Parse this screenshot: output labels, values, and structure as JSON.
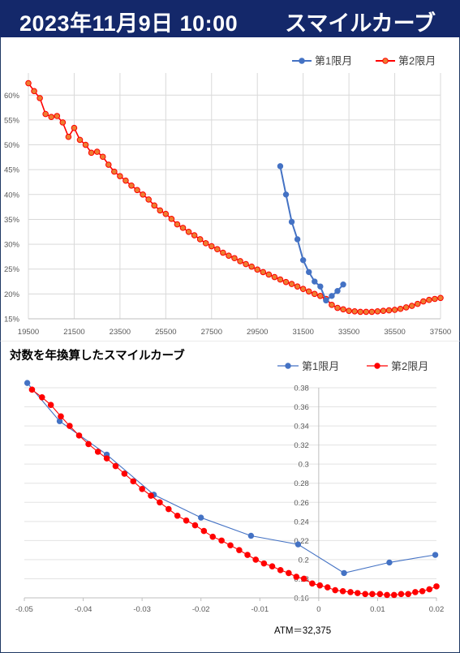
{
  "header": {
    "date": "2023年11月9日 10:00",
    "title": "スマイルカーブ"
  },
  "colors": {
    "series1": "#4472c4",
    "series2": "#ff0000",
    "series2_fill": "#ed7d31"
  },
  "chart_data": [
    {
      "type": "line",
      "title": "",
      "xlim": [
        19500,
        37500
      ],
      "ylim": [
        0.15,
        0.62
      ],
      "grid": true,
      "legend": "top-right",
      "x_ticks": [
        "19500",
        "21500",
        "23500",
        "25500",
        "27500",
        "29500",
        "31500",
        "33500",
        "35500",
        "37500"
      ],
      "y_ticks": [
        "15%",
        "20%",
        "25%",
        "30%",
        "35%",
        "40%",
        "45%",
        "50%",
        "55%",
        "60%"
      ],
      "series": [
        {
          "name": "第1限月",
          "x": [
            30500,
            30750,
            31000,
            31250,
            31500,
            31750,
            32000,
            32250,
            32500,
            32750,
            33000,
            33250
          ],
          "y": [
            0.457,
            0.4,
            0.345,
            0.31,
            0.268,
            0.244,
            0.225,
            0.215,
            0.187,
            0.196,
            0.206,
            0.219
          ]
        },
        {
          "name": "第2限月",
          "x": [
            19500,
            19750,
            20000,
            20250,
            20500,
            20750,
            21000,
            21250,
            21500,
            21750,
            22000,
            22250,
            22500,
            22750,
            23000,
            23250,
            23500,
            23750,
            24000,
            24250,
            24500,
            24750,
            25000,
            25250,
            25500,
            25750,
            26000,
            26250,
            26500,
            26750,
            27000,
            27250,
            27500,
            27750,
            28000,
            28250,
            28500,
            28750,
            29000,
            29250,
            29500,
            29750,
            30000,
            30250,
            30500,
            30750,
            31000,
            31250,
            31500,
            31750,
            32000,
            32250,
            32500,
            32750,
            33000,
            33250,
            33500,
            33750,
            34000,
            34250,
            34500,
            34750,
            35000,
            35250,
            35500,
            35750,
            36000,
            36250,
            36500,
            36750,
            37000,
            37250,
            37500
          ],
          "y": [
            0.624,
            0.608,
            0.594,
            0.562,
            0.556,
            0.558,
            0.545,
            0.516,
            0.534,
            0.51,
            0.5,
            0.484,
            0.486,
            0.476,
            0.46,
            0.446,
            0.437,
            0.428,
            0.418,
            0.409,
            0.4,
            0.39,
            0.378,
            0.368,
            0.361,
            0.351,
            0.34,
            0.333,
            0.325,
            0.318,
            0.31,
            0.302,
            0.296,
            0.29,
            0.283,
            0.277,
            0.272,
            0.266,
            0.26,
            0.255,
            0.249,
            0.244,
            0.239,
            0.234,
            0.229,
            0.224,
            0.22,
            0.215,
            0.21,
            0.205,
            0.2,
            0.196,
            0.19,
            0.178,
            0.172,
            0.169,
            0.166,
            0.165,
            0.164,
            0.164,
            0.164,
            0.165,
            0.166,
            0.167,
            0.168,
            0.17,
            0.173,
            0.176,
            0.18,
            0.185,
            0.188,
            0.19,
            0.192
          ]
        }
      ]
    },
    {
      "type": "line",
      "title": "対数を年換算したスマイルカーブ",
      "xlim": [
        -0.05,
        0.02
      ],
      "ylim": [
        0.16,
        0.38
      ],
      "grid": true,
      "legend": "top-right",
      "x_ticks": [
        "-0.05",
        "-0.04",
        "-0.03",
        "-0.02",
        "-0.01",
        "0",
        "0.01",
        "0.02"
      ],
      "y_ticks": [
        "0.16",
        "0.18",
        "0.2",
        "0.22",
        "0.24",
        "0.26",
        "0.28",
        "0.3",
        "0.32",
        "0.34",
        "0.36",
        "0.38"
      ],
      "annotation": "ATM＝32,375",
      "series": [
        {
          "name": "第1限月",
          "x": [
            -0.0495,
            -0.044,
            -0.036,
            -0.028,
            -0.02,
            -0.0115,
            -0.0035,
            0.0043,
            0.012,
            0.0198
          ],
          "y": [
            0.385,
            0.345,
            0.31,
            0.268,
            0.244,
            0.225,
            0.216,
            0.186,
            0.197,
            0.205
          ]
        },
        {
          "name": "第2限月",
          "x": [
            -0.0487,
            -0.047,
            -0.0455,
            -0.0438,
            -0.0423,
            -0.0407,
            -0.0391,
            -0.0375,
            -0.036,
            -0.0345,
            -0.033,
            -0.0315,
            -0.03,
            -0.0285,
            -0.027,
            -0.0255,
            -0.024,
            -0.0225,
            -0.021,
            -0.0195,
            -0.018,
            -0.0165,
            -0.015,
            -0.0135,
            -0.0121,
            -0.0107,
            -0.0093,
            -0.0079,
            -0.0065,
            -0.0051,
            -0.0038,
            -0.0025,
            -0.0011,
            0.0002,
            0.0015,
            0.0028,
            0.0041,
            0.0054,
            0.0066,
            0.0079,
            0.0091,
            0.0104,
            0.0116,
            0.0128,
            0.014,
            0.0152,
            0.0164,
            0.0176,
            0.0188,
            0.02
          ],
          "y": [
            0.378,
            0.37,
            0.362,
            0.35,
            0.34,
            0.33,
            0.321,
            0.313,
            0.306,
            0.298,
            0.29,
            0.282,
            0.274,
            0.267,
            0.26,
            0.253,
            0.246,
            0.241,
            0.236,
            0.23,
            0.224,
            0.22,
            0.215,
            0.21,
            0.205,
            0.2,
            0.196,
            0.193,
            0.189,
            0.186,
            0.182,
            0.18,
            0.175,
            0.173,
            0.171,
            0.168,
            0.167,
            0.166,
            0.165,
            0.164,
            0.164,
            0.164,
            0.163,
            0.163,
            0.164,
            0.164,
            0.166,
            0.167,
            0.169,
            0.172
          ]
        }
      ]
    }
  ]
}
